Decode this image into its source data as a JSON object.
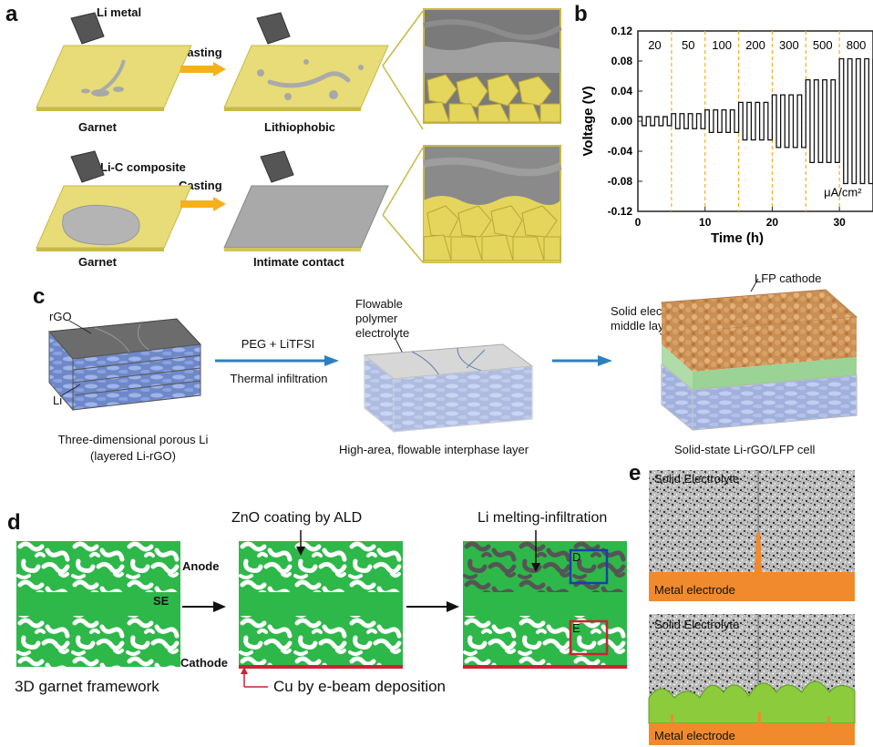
{
  "figure": {
    "panel_labels": [
      "a",
      "b",
      "c",
      "d",
      "e"
    ],
    "colors": {
      "garnet": "#e7dc78",
      "garnet_edge": "#c9b946",
      "arrow_orange": "#f5b11c",
      "arrow_blue": "#2e7fc0",
      "green": "#2eb84a",
      "orange": "#f08a2c",
      "light_green": "#8ccb3c",
      "red": "#cc2233",
      "blue": "#1a3fa8"
    }
  },
  "panel_a": {
    "top_title": "Li metal",
    "top_arrow": "Casting",
    "top_left_caption": "Garnet",
    "top_right_caption": "Lithiophobic",
    "bottom_title": "Li-C composite",
    "bottom_arrow": "Casting",
    "bottom_left_caption": "Garnet",
    "bottom_right_caption": "Intimate contact"
  },
  "chart_data": {
    "type": "line",
    "xlabel": "Time (h)",
    "ylabel": "Voltage (V)",
    "xlim": [
      0,
      35
    ],
    "ylim": [
      -0.12,
      0.12
    ],
    "x_ticks": [
      0,
      10,
      20,
      30
    ],
    "y_ticks": [
      0.12,
      0.08,
      0.04,
      0.0,
      -0.04,
      -0.08,
      -0.12
    ],
    "y_tick_labels": [
      "0.12",
      "0.08",
      "0.04",
      "0.00",
      "-0.04",
      "-0.08",
      "-0.12"
    ],
    "segment_labels": [
      "20",
      "50",
      "100",
      "200",
      "300",
      "500",
      "800"
    ],
    "segment_boundaries": [
      5,
      10,
      15,
      20,
      25,
      30
    ],
    "segments": [
      {
        "current": "20",
        "start": 0,
        "end": 5,
        "amplitude": 0.006
      },
      {
        "current": "50",
        "start": 5,
        "end": 10,
        "amplitude": 0.01
      },
      {
        "current": "100",
        "start": 10,
        "end": 15,
        "amplitude": 0.015
      },
      {
        "current": "200",
        "start": 15,
        "end": 20,
        "amplitude": 0.025
      },
      {
        "current": "300",
        "start": 20,
        "end": 25,
        "amplitude": 0.035
      },
      {
        "current": "500",
        "start": 25,
        "end": 30,
        "amplitude": 0.055
      },
      {
        "current": "800",
        "start": 30,
        "end": 35,
        "amplitude": 0.083
      }
    ],
    "unit_annotation": "μA/cm²",
    "grid": false
  },
  "panel_c": {
    "label_rgo": "rGO",
    "label_li": "Li",
    "arrow1_top": "PEG + LiTFSI",
    "arrow1_bottom": "Thermal infiltration",
    "flowable_label_lines": [
      "Flowable",
      "polymer",
      "electrolyte"
    ],
    "solid_label_lines": [
      "Solid electrolyte",
      "middle layer"
    ],
    "lfp_label": "LFP cathode",
    "caption1_lines": [
      "Three-dimensional porous Li",
      "(layered Li-rGO)"
    ],
    "caption2": "High-area, flowable interphase layer",
    "caption3": "Solid-state Li-rGO/LFP cell"
  },
  "panel_d": {
    "label_se": "SE",
    "label_anode": "Anode",
    "label_cathode": "Cathode",
    "top_mid": "ZnO coating by ALD",
    "top_right": "Li melting-infiltration",
    "box_d": "D",
    "box_e": "E",
    "caption_left": "3D garnet framework",
    "caption_cu": "Cu by e-beam deposition"
  },
  "panel_e": {
    "top_label": "Solid Electrolyte",
    "top_bottom_label": "Metal electrode",
    "bottom_label": "Solid Electrolyte",
    "bottom_bottom_label": "Metal electrode"
  }
}
